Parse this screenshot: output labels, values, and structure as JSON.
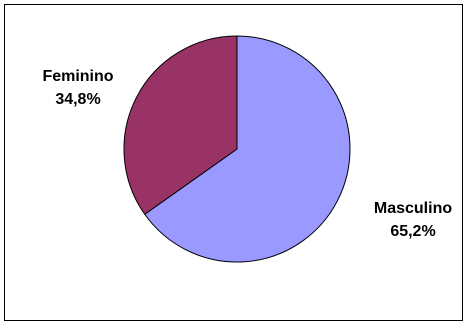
{
  "chart_data": {
    "type": "pie",
    "title": "",
    "slices": [
      {
        "label": "Masculino",
        "value": 65.2,
        "display": "65,2%",
        "color": "#9999ff"
      },
      {
        "label": "Feminino",
        "value": 34.8,
        "display": "34,8%",
        "color": "#993366"
      }
    ],
    "legend": "none"
  }
}
